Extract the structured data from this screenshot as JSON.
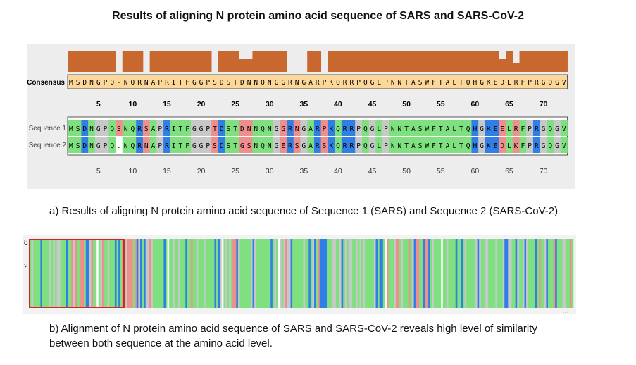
{
  "title": "Results of aligning N protein amino acid sequence of SARS and SARS-CoV-2",
  "panel_a": {
    "consensus_label": "Consensus",
    "sequence1_label": "Sequence 1",
    "sequence2_label": "Sequence 2",
    "consensus": "MSDNGPQ-NQRNAPRITFGGPSDSTDNNQNGGRNGARPKQRRPQGLPNNTASWFTALTQHGKEDLRFPRGQGV",
    "sequence1": "MSDNGPQSNQRSAPRITFGGPTDSTDNNQNGGRNGARPKQRRPQGLPNNTASWFTALTQHGKEELRFPRGQGV",
    "sequence2": "MSDNGPQ.NQRNAPRITFGGPSDSTGSNQNGERSGARSKQRRPQGLPNNTASWFTALTQHGKEDLKFPRGQGV",
    "ruler_top": [
      "5",
      "10",
      "15",
      "20",
      "25",
      "30",
      "35",
      "40",
      "45",
      "50",
      "55",
      "60",
      "65",
      "70"
    ],
    "ruler_bottom": [
      "5",
      "10",
      "15",
      "20",
      "25",
      "30",
      "35",
      "40",
      "45",
      "50",
      "55",
      "60",
      "65",
      "70"
    ],
    "identity_gap_positions": [
      8,
      12,
      22,
      26,
      27,
      33,
      34,
      35,
      38,
      64,
      66
    ],
    "residue_colors": {
      "green": "#7fe07f",
      "blue": "#2f7fe6",
      "pink": "#f08e8e",
      "gray": "#c8c8c8",
      "white": "#ffffff"
    },
    "identity_bar_color": "#c8682e",
    "consensus_bg_color": "#fbd79a"
  },
  "caption_a": "a) Results of aligning N protein amino acid sequence of Sequence 1 (SARS) and Sequence 2 (SARS-CoV-2)",
  "panel_b": {
    "row_labels": [
      "8",
      "2"
    ],
    "corner_text": "…"
  },
  "caption_b_line1": "b) Alignment of N protein amino acid sequence of SARS and SARS-CoV-2 reveals high level of similarity",
  "caption_b_line2": "between both sequence at the amino acid level."
}
